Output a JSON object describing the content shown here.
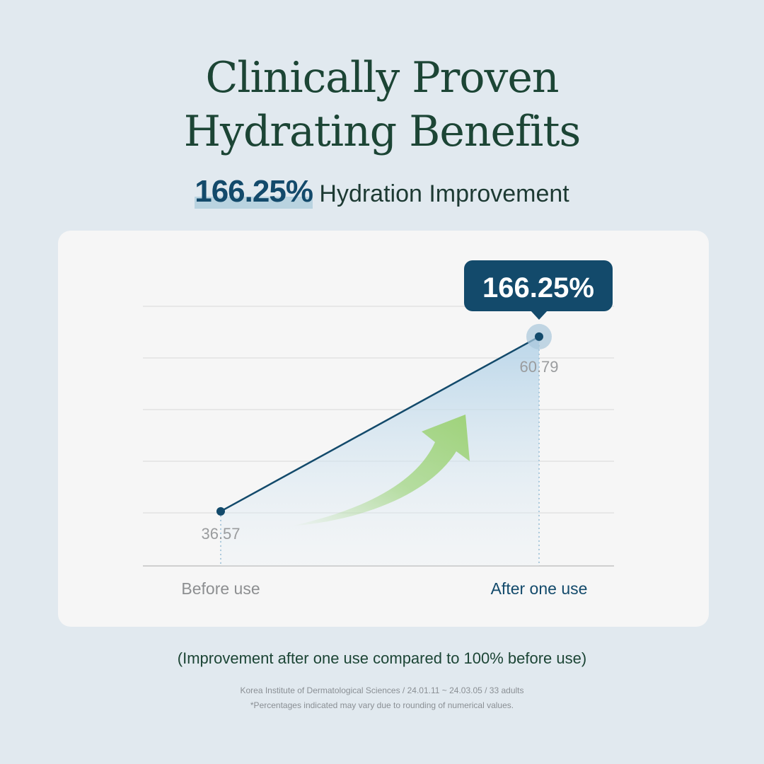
{
  "title_line1": "Clinically Proven",
  "title_line2": "Hydrating Benefits",
  "headline": {
    "value": "166.25%",
    "label": "Hydration Improvement"
  },
  "chart_data": {
    "type": "line",
    "categories": [
      "Before use",
      "After one use"
    ],
    "values": [
      36.57,
      60.79
    ],
    "data_labels": [
      "36.57",
      "60.79"
    ],
    "callout": "166.25%",
    "ylim": [
      29,
      65
    ],
    "grid": true,
    "colors": {
      "line": "#134a6b",
      "callout": "#134a6b",
      "arrow": "#9fd27a",
      "fill": "#bcd8ea"
    }
  },
  "note": "(Improvement after one use compared to 100% before use)",
  "source": "Korea Institute of Dermatological Sciences / 24.01.11 ~ 24.03.05 / 33 adults",
  "disclaimer": "*Percentages indicated may vary due to rounding of numerical values."
}
